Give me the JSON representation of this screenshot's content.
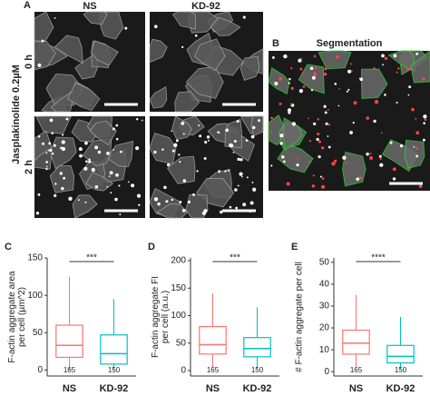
{
  "panel_a": {
    "letter": "A",
    "columns": [
      "NS",
      "KD-92"
    ],
    "rows": [
      "0 h",
      "2 h"
    ],
    "row_title": "Jasplakinolide 0.2µM"
  },
  "panel_b": {
    "letter": "B",
    "title": "Segmentation"
  },
  "chart_data": [
    {
      "type": "box",
      "letter": "C",
      "ylabel": [
        "F-actin aggregate area",
        "per cell (µm^2)"
      ],
      "categories": [
        "NS",
        "KD-92"
      ],
      "colors": [
        "#f8766d",
        "#00bfc4"
      ],
      "boxes": [
        {
          "min": 0,
          "q1": 17,
          "median": 33,
          "q3": 60,
          "max": 125
        },
        {
          "min": 0,
          "q1": 8,
          "median": 22,
          "q3": 47,
          "max": 95
        }
      ],
      "n": [
        165,
        150
      ],
      "significance": "***",
      "ylim": [
        -8,
        150
      ],
      "yticks": [
        0,
        50,
        100,
        150
      ]
    },
    {
      "type": "box",
      "letter": "D",
      "ylabel": [
        "F-actin aggregate FI",
        "per cell (a.u.)"
      ],
      "categories": [
        "NS",
        "KD-92"
      ],
      "colors": [
        "#f8766d",
        "#00bfc4"
      ],
      "boxes": [
        {
          "min": 5,
          "q1": 30,
          "median": 47,
          "q3": 80,
          "max": 140
        },
        {
          "min": 3,
          "q1": 25,
          "median": 40,
          "q3": 60,
          "max": 115
        }
      ],
      "n": [
        165,
        150
      ],
      "significance": "***",
      "ylim": [
        -10,
        205
      ],
      "yticks": [
        0,
        50,
        100,
        150,
        200
      ]
    },
    {
      "type": "box",
      "letter": "E",
      "ylabel": [
        "# F-actin aggregate per cell"
      ],
      "categories": [
        "NS",
        "KD-92"
      ],
      "colors": [
        "#f8766d",
        "#00bfc4"
      ],
      "boxes": [
        {
          "min": 2,
          "q1": 8,
          "median": 13,
          "q3": 19,
          "max": 35
        },
        {
          "min": 1,
          "q1": 4,
          "median": 7,
          "q3": 12,
          "max": 25
        }
      ],
      "n": [
        165,
        150
      ],
      "significance": "****",
      "ylim": [
        -2,
        52
      ],
      "yticks": [
        0,
        10,
        20,
        30,
        40,
        50
      ]
    }
  ]
}
